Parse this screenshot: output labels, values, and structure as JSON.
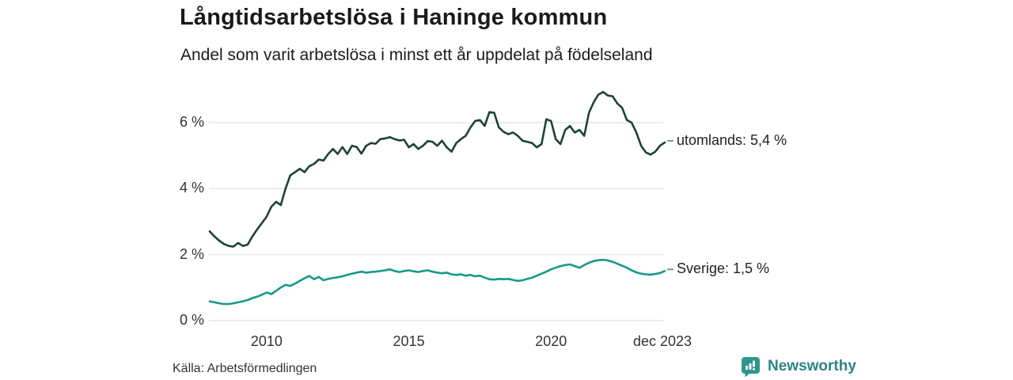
{
  "header": {
    "title": "Långtidsarbetslösa i Haninge kommun",
    "subtitle": "Andel som varit arbetslösa i minst ett år uppdelat på födelseland"
  },
  "footer": {
    "source": "Källa: Arbetsförmedlingen",
    "brand": "Newsworthy"
  },
  "colors": {
    "background": "#ffffff",
    "grid": "#e8e8e8",
    "axis_text": "#333333",
    "title_text": "#1a1a1a",
    "legend_dash": "#8c8c8c",
    "series_utomlands": "#1c423b",
    "series_sverige": "#17998a",
    "brand_text": "#2c8484",
    "logo_teal": "#2f958b"
  },
  "chart_data": {
    "type": "line",
    "title": "Långtidsarbetslösa i Haninge kommun",
    "subtitle": "Andel som varit arbetslösa i minst ett år uppdelat på födelseland",
    "xlabel": "",
    "ylabel": "",
    "ylim": [
      0,
      7.08
    ],
    "grid": "horizontal",
    "legend_position": "right-of-line-ends",
    "x_note": "series span from ~2 years before the 2010 tick to dec 2023; values sampled every 2nd month",
    "yticks": [
      {
        "value": 0,
        "label": "0 %"
      },
      {
        "value": 2,
        "label": "2 %"
      },
      {
        "value": 4,
        "label": "4 %"
      },
      {
        "value": 6,
        "label": "6 %"
      }
    ],
    "xticks": [
      {
        "month": 24,
        "label": "2010"
      },
      {
        "month": 84,
        "label": "2015"
      },
      {
        "month": 144,
        "label": "2020"
      },
      {
        "month": 191,
        "label": "dec 2023"
      }
    ],
    "months_total": 192,
    "series": [
      {
        "name": "utomlands",
        "legend_label": "utomlands: 5,4 %",
        "last_value_label": "5,4 %",
        "color": "#1c423b",
        "values": [
          2.7,
          2.55,
          2.42,
          2.32,
          2.26,
          2.24,
          2.35,
          2.26,
          2.3,
          2.55,
          2.76,
          2.95,
          3.15,
          3.45,
          3.6,
          3.5,
          4.0,
          4.4,
          4.5,
          4.6,
          4.5,
          4.68,
          4.75,
          4.88,
          4.85,
          5.05,
          5.2,
          5.05,
          5.26,
          5.05,
          5.3,
          5.26,
          5.06,
          5.3,
          5.38,
          5.36,
          5.5,
          5.52,
          5.56,
          5.5,
          5.46,
          5.48,
          5.25,
          5.35,
          5.2,
          5.3,
          5.44,
          5.42,
          5.3,
          5.45,
          5.25,
          5.12,
          5.38,
          5.5,
          5.6,
          5.85,
          6.05,
          6.08,
          5.9,
          6.32,
          6.3,
          5.85,
          5.72,
          5.65,
          5.7,
          5.6,
          5.45,
          5.42,
          5.38,
          5.25,
          5.35,
          6.1,
          6.05,
          5.5,
          5.35,
          5.78,
          5.9,
          5.7,
          5.78,
          5.6,
          6.3,
          6.62,
          6.85,
          6.93,
          6.82,
          6.8,
          6.58,
          6.45,
          6.08,
          6.0,
          5.7,
          5.3,
          5.1,
          5.03,
          5.12,
          5.3,
          5.4
        ]
      },
      {
        "name": "Sverige",
        "legend_label": "Sverige: 1,5 %",
        "last_value_label": "1,5 %",
        "color": "#17998a",
        "values": [
          0.58,
          0.55,
          0.52,
          0.5,
          0.5,
          0.52,
          0.55,
          0.58,
          0.62,
          0.68,
          0.72,
          0.78,
          0.85,
          0.8,
          0.9,
          1.0,
          1.08,
          1.05,
          1.12,
          1.2,
          1.28,
          1.35,
          1.25,
          1.32,
          1.22,
          1.26,
          1.29,
          1.31,
          1.34,
          1.38,
          1.42,
          1.45,
          1.48,
          1.45,
          1.47,
          1.48,
          1.5,
          1.52,
          1.55,
          1.5,
          1.47,
          1.5,
          1.52,
          1.49,
          1.47,
          1.5,
          1.52,
          1.48,
          1.45,
          1.43,
          1.45,
          1.4,
          1.38,
          1.4,
          1.36,
          1.38,
          1.34,
          1.36,
          1.3,
          1.25,
          1.24,
          1.26,
          1.25,
          1.26,
          1.23,
          1.2,
          1.22,
          1.26,
          1.3,
          1.36,
          1.42,
          1.48,
          1.55,
          1.6,
          1.65,
          1.68,
          1.7,
          1.65,
          1.6,
          1.68,
          1.75,
          1.8,
          1.83,
          1.84,
          1.82,
          1.78,
          1.72,
          1.66,
          1.6,
          1.52,
          1.46,
          1.42,
          1.4,
          1.39,
          1.41,
          1.44,
          1.5
        ]
      }
    ]
  }
}
